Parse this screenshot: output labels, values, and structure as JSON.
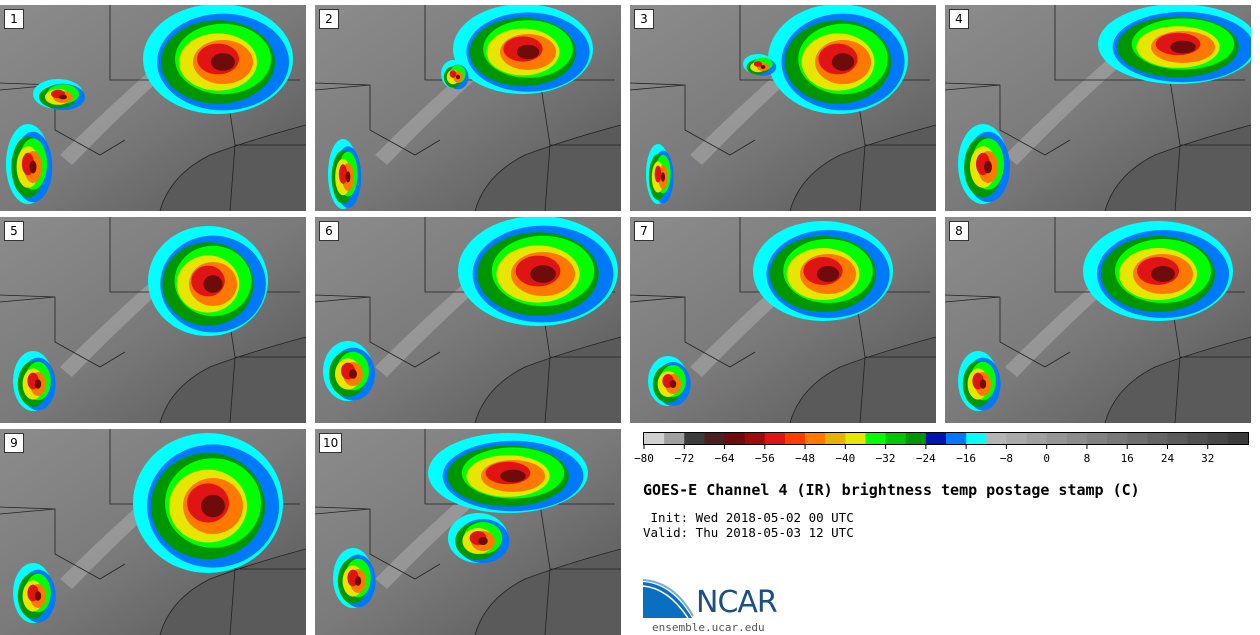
{
  "title": "GOES-E Channel 4 (IR) brightness temp postage stamp (C)",
  "init_text": " Init: Wed 2018-05-02 00 UTC",
  "valid_text": "Valid: Thu 2018-05-03 12 UTC",
  "site": "ensemble.ucar.edu",
  "logo_text": "NCAR",
  "panels": [
    "1",
    "2",
    "3",
    "4",
    "5",
    "6",
    "7",
    "8",
    "9",
    "10"
  ],
  "colorbar": {
    "min": -80,
    "max": 40,
    "step": 4,
    "tick_labels": [
      "-80",
      "-72",
      "-64",
      "-56",
      "-48",
      "-40",
      "-32",
      "-24",
      "-16",
      "-8",
      "0",
      "8",
      "16",
      "24",
      "32"
    ],
    "colors": [
      "#d0d0d0",
      "#a0a0a0",
      "#3c3c3c",
      "#4a2020",
      "#6e0c0c",
      "#a00a0a",
      "#e01414",
      "#ff3c00",
      "#ff7800",
      "#e6b400",
      "#e6e600",
      "#00ff00",
      "#00c800",
      "#009600",
      "#0014b4",
      "#0078ff",
      "#00ffff",
      "#b4b4b4",
      "#aaaaaa",
      "#a0a0a0",
      "#969696",
      "#8c8c8c",
      "#828282",
      "#787878",
      "#6e6e6e",
      "#646464",
      "#5a5a5a",
      "#505050",
      "#464646",
      "#3c3c3c"
    ]
  }
}
